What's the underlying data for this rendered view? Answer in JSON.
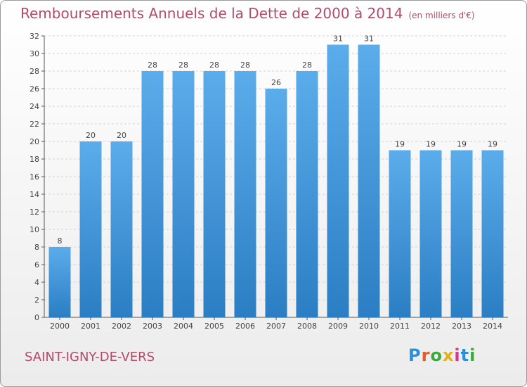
{
  "header": {
    "title": "Remboursements Annuels de la Dette de 2000 à 2014",
    "unit": "(en milliers d'€)"
  },
  "footer": {
    "commune": "SAINT-IGNY-DE-VERS",
    "logo": "Proxiti"
  },
  "colors": {
    "title": "#b34a6a",
    "bar_top": "#5aacea",
    "bar_bottom": "#2c7ec4",
    "grid": "#cfcfcf"
  },
  "chart_data": {
    "type": "bar",
    "title": "Remboursements Annuels de la Dette de 2000 à 2014",
    "ylabel": "(en milliers d'€)",
    "xlabel": "",
    "categories": [
      "2000",
      "2001",
      "2002",
      "2003",
      "2004",
      "2005",
      "2006",
      "2007",
      "2008",
      "2009",
      "2010",
      "2011",
      "2012",
      "2013",
      "2014"
    ],
    "values": [
      8,
      20,
      20,
      28,
      28,
      28,
      28,
      26,
      28,
      31,
      31,
      19,
      19,
      19,
      19
    ],
    "ylim": [
      0,
      32
    ],
    "yticks": [
      0,
      2,
      4,
      6,
      8,
      10,
      12,
      14,
      16,
      18,
      20,
      22,
      24,
      26,
      28,
      30,
      32
    ],
    "grid": true
  }
}
